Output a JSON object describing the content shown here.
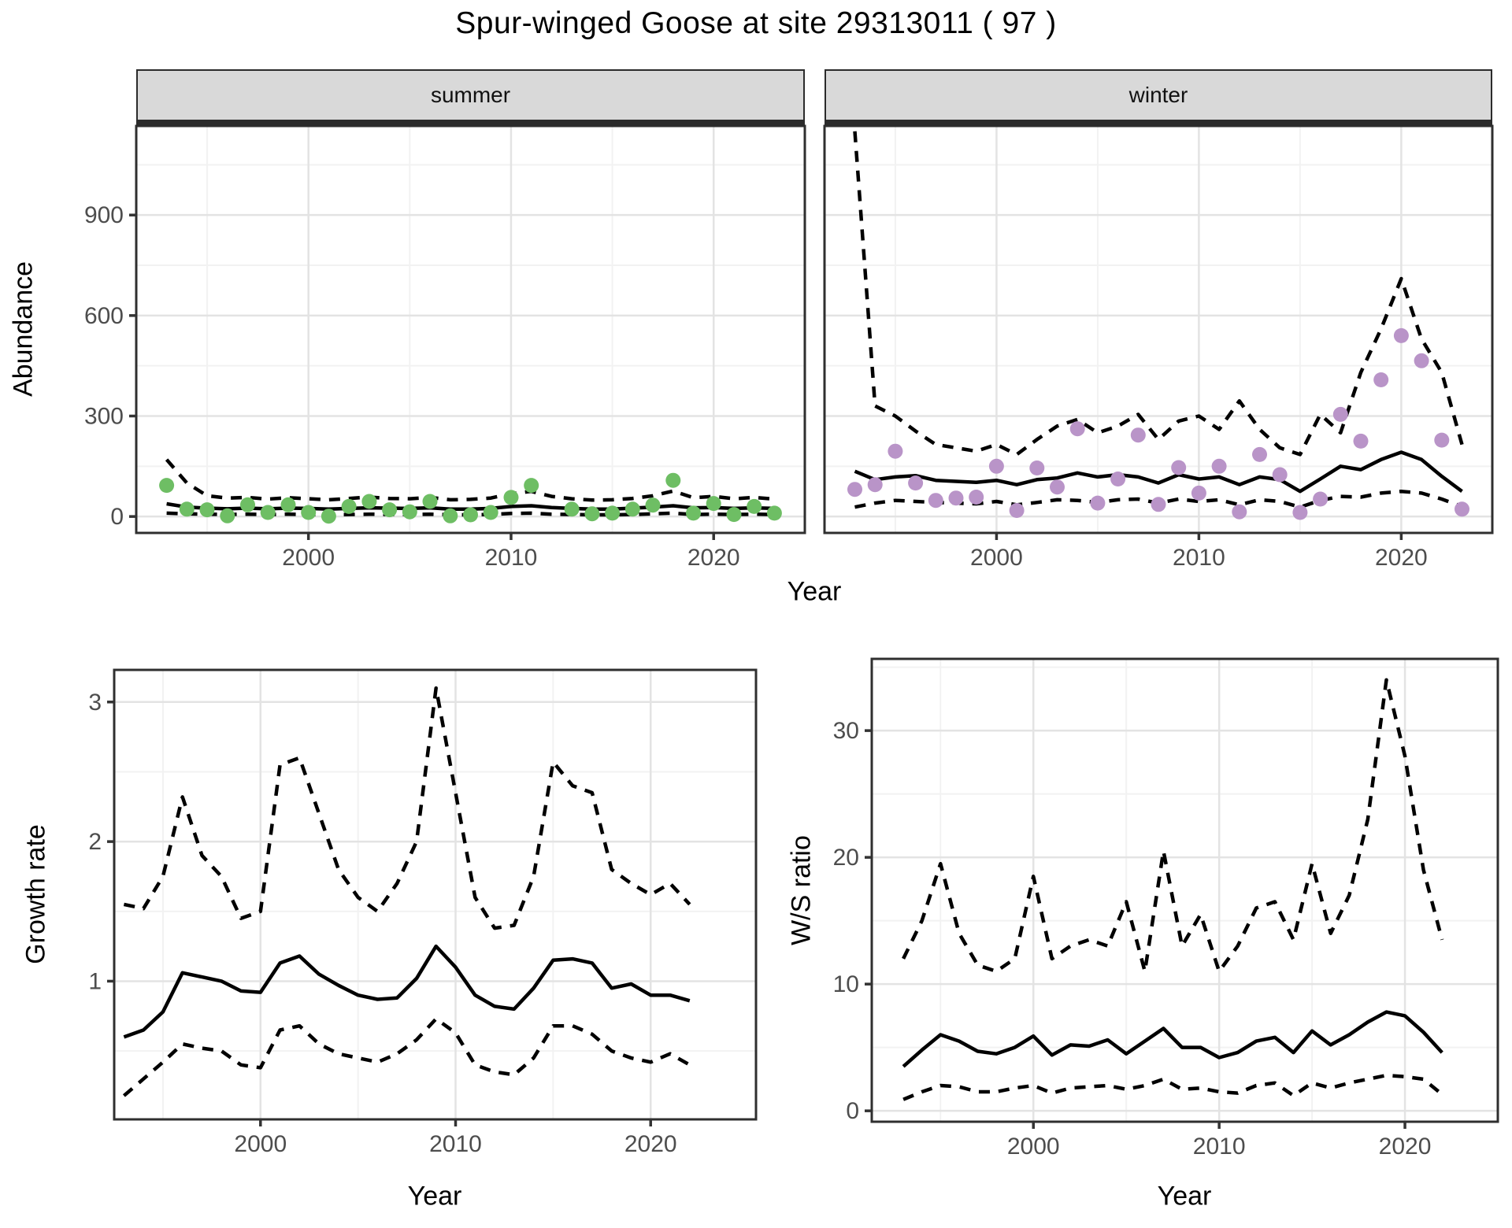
{
  "title": "Spur-winged Goose at site 29313011 ( 97 )",
  "colors": {
    "summer_point": "#6ebe64",
    "winter_point": "#b994c8",
    "line": "#000000",
    "strip_bg": "#d9d9d9",
    "panel_bg": "#ffffff",
    "panel_border": "#2f2f2f",
    "grid_major": "#e3e3e3",
    "grid_minor": "#f2f2f2",
    "axis_tick": "#333333",
    "tick_text": "#4d4d4d"
  },
  "chart_data": [
    {
      "key": "summer",
      "type": "line",
      "facet_label": "summer",
      "xlabel": "Year",
      "ylabel": "Abundance",
      "x": [
        1993,
        1994,
        1995,
        1996,
        1997,
        1998,
        1999,
        2000,
        2001,
        2002,
        2003,
        2004,
        2005,
        2006,
        2007,
        2008,
        2009,
        2010,
        2011,
        2012,
        2013,
        2014,
        2015,
        2016,
        2017,
        2018,
        2019,
        2020,
        2021,
        2022,
        2023
      ],
      "series": [
        {
          "name": "median",
          "style": "solid",
          "values": [
            38,
            28,
            25,
            23,
            25,
            23,
            25,
            24,
            22,
            24,
            26,
            25,
            24,
            26,
            22,
            22,
            24,
            30,
            32,
            27,
            24,
            22,
            22,
            25,
            28,
            32,
            26,
            27,
            24,
            26,
            24
          ]
        },
        {
          "name": "upper_ci",
          "style": "dashed",
          "values": [
            170,
            100,
            62,
            55,
            57,
            52,
            56,
            53,
            50,
            54,
            58,
            54,
            53,
            57,
            50,
            51,
            55,
            68,
            75,
            60,
            53,
            49,
            50,
            54,
            62,
            76,
            56,
            60,
            53,
            57,
            52
          ]
        },
        {
          "name": "lower_ci",
          "style": "dashed",
          "values": [
            10,
            8,
            7,
            6,
            7,
            6,
            7,
            6,
            5,
            6,
            7,
            6,
            6,
            7,
            5,
            5,
            6,
            9,
            10,
            7,
            6,
            5,
            5,
            6,
            8,
            10,
            6,
            7,
            6,
            7,
            6
          ]
        }
      ],
      "points": {
        "name": "observed_counts",
        "color_key": "summer_point",
        "values": [
          93,
          22,
          20,
          2,
          35,
          12,
          35,
          12,
          1,
          30,
          45,
          20,
          14,
          45,
          2,
          5,
          12,
          57,
          93,
          null,
          22,
          8,
          10,
          22,
          34,
          108,
          10,
          39,
          6,
          30,
          10
        ]
      },
      "xlim": [
        1991.5,
        2024.5
      ],
      "ylim": [
        -49,
        1166
      ],
      "xticks": [
        2000,
        2010,
        2020
      ],
      "xticks_minor": [
        1995,
        2005,
        2015
      ],
      "yticks": [
        0,
        300,
        600,
        900
      ],
      "yticks_minor": [
        150,
        450,
        750,
        1050
      ],
      "show_y_axis": true
    },
    {
      "key": "winter",
      "type": "line",
      "facet_label": "winter",
      "xlabel": "Year",
      "ylabel": "Abundance",
      "x": [
        1993,
        1994,
        1995,
        1996,
        1997,
        1998,
        1999,
        2000,
        2001,
        2002,
        2003,
        2004,
        2005,
        2006,
        2007,
        2008,
        2009,
        2010,
        2011,
        2012,
        2013,
        2014,
        2015,
        2016,
        2017,
        2018,
        2019,
        2020,
        2021,
        2022,
        2023
      ],
      "series": [
        {
          "name": "median",
          "style": "solid",
          "values": [
            135,
            110,
            118,
            122,
            108,
            105,
            102,
            108,
            95,
            110,
            115,
            130,
            118,
            125,
            118,
            100,
            125,
            112,
            118,
            95,
            118,
            110,
            75,
            112,
            150,
            140,
            170,
            192,
            170,
            120,
            75
          ]
        },
        {
          "name": "upper_ci",
          "style": "dashed",
          "values": [
            1150,
            330,
            300,
            255,
            215,
            205,
            195,
            215,
            185,
            230,
            270,
            290,
            250,
            270,
            305,
            230,
            285,
            300,
            260,
            345,
            260,
            205,
            185,
            305,
            250,
            430,
            560,
            710,
            530,
            430,
            215
          ]
        },
        {
          "name": "lower_ci",
          "style": "dashed",
          "values": [
            28,
            40,
            48,
            45,
            42,
            40,
            38,
            45,
            35,
            42,
            50,
            48,
            42,
            50,
            52,
            40,
            52,
            45,
            50,
            35,
            50,
            45,
            28,
            48,
            60,
            58,
            70,
            75,
            70,
            52,
            30
          ]
        }
      ],
      "points": {
        "name": "observed_counts",
        "color_key": "winter_point",
        "values": [
          81,
          95,
          195,
          100,
          48,
          55,
          58,
          150,
          18,
          145,
          88,
          262,
          40,
          112,
          243,
          36,
          146,
          70,
          150,
          14,
          185,
          125,
          12,
          52,
          305,
          225,
          408,
          540,
          465,
          228,
          22
        ]
      },
      "xlim": [
        1991.5,
        2024.5
      ],
      "ylim": [
        -49,
        1166
      ],
      "xticks": [
        2000,
        2010,
        2020
      ],
      "xticks_minor": [
        1995,
        2005,
        2015
      ],
      "yticks": [
        0,
        300,
        600,
        900
      ],
      "yticks_minor": [
        150,
        450,
        750,
        1050
      ],
      "show_y_axis": false
    },
    {
      "key": "growth",
      "type": "line",
      "facet_label": "",
      "xlabel": "Year",
      "ylabel": "Growth rate",
      "x": [
        1993,
        1994,
        1995,
        1996,
        1997,
        1998,
        1999,
        2000,
        2001,
        2002,
        2003,
        2004,
        2005,
        2006,
        2007,
        2008,
        2009,
        2010,
        2011,
        2012,
        2013,
        2014,
        2015,
        2016,
        2017,
        2018,
        2019,
        2020,
        2021,
        2022
      ],
      "series": [
        {
          "name": "median",
          "style": "solid",
          "values": [
            0.6,
            0.65,
            0.78,
            1.06,
            1.03,
            1.0,
            0.93,
            0.92,
            1.13,
            1.18,
            1.05,
            0.97,
            0.9,
            0.87,
            0.88,
            1.02,
            1.25,
            1.1,
            0.9,
            0.82,
            0.8,
            0.95,
            1.15,
            1.16,
            1.13,
            0.95,
            0.98,
            0.9,
            0.9,
            0.86
          ]
        },
        {
          "name": "upper_ci",
          "style": "dashed",
          "values": [
            1.55,
            1.52,
            1.75,
            2.32,
            1.9,
            1.75,
            1.45,
            1.5,
            2.55,
            2.6,
            2.2,
            1.8,
            1.6,
            1.5,
            1.7,
            2.0,
            3.1,
            2.35,
            1.6,
            1.38,
            1.4,
            1.75,
            2.57,
            2.4,
            2.35,
            1.8,
            1.7,
            1.62,
            1.7,
            1.55
          ]
        },
        {
          "name": "lower_ci",
          "style": "dashed",
          "values": [
            0.18,
            0.3,
            0.42,
            0.55,
            0.52,
            0.5,
            0.4,
            0.38,
            0.65,
            0.68,
            0.55,
            0.48,
            0.45,
            0.42,
            0.48,
            0.58,
            0.73,
            0.63,
            0.4,
            0.35,
            0.33,
            0.45,
            0.68,
            0.68,
            0.62,
            0.5,
            0.45,
            0.42,
            0.48,
            0.4
          ]
        }
      ],
      "points": null,
      "xlim": [
        1992.5,
        2025.4
      ],
      "ylim": [
        0.01,
        3.23
      ],
      "xticks": [
        2000,
        2010,
        2020
      ],
      "xticks_minor": [
        1995,
        2005,
        2015
      ],
      "yticks": [
        1,
        2,
        3
      ],
      "yticks_minor": [
        0.5,
        1.5,
        2.5
      ],
      "show_y_axis": true
    },
    {
      "key": "ws",
      "type": "line",
      "facet_label": "",
      "xlabel": "Year",
      "ylabel": "W/S ratio",
      "x": [
        1993,
        1994,
        1995,
        1996,
        1997,
        1998,
        1999,
        2000,
        2001,
        2002,
        2003,
        2004,
        2005,
        2006,
        2007,
        2008,
        2009,
        2010,
        2011,
        2012,
        2013,
        2014,
        2015,
        2016,
        2017,
        2018,
        2019,
        2020,
        2021,
        2022
      ],
      "series": [
        {
          "name": "median",
          "style": "solid",
          "values": [
            3.5,
            4.8,
            6.0,
            5.5,
            4.7,
            4.5,
            5.0,
            5.9,
            4.4,
            5.2,
            5.1,
            5.6,
            4.5,
            5.5,
            6.5,
            5.0,
            5.0,
            4.2,
            4.6,
            5.5,
            5.8,
            4.6,
            6.3,
            5.2,
            6.0,
            7.0,
            7.8,
            7.5,
            6.2,
            4.6
          ]
        },
        {
          "name": "upper_ci",
          "style": "dashed",
          "values": [
            12.0,
            15.0,
            19.5,
            14.0,
            11.5,
            11.0,
            12.0,
            18.5,
            12.0,
            13.0,
            13.5,
            13.0,
            16.5,
            11.0,
            20.5,
            13.0,
            15.5,
            11.0,
            13.0,
            16.0,
            16.5,
            13.5,
            19.5,
            14.0,
            17.0,
            23.0,
            34.0,
            28.0,
            19.0,
            13.5
          ]
        },
        {
          "name": "lower_ci",
          "style": "dashed",
          "values": [
            0.9,
            1.5,
            2.0,
            1.9,
            1.5,
            1.5,
            1.8,
            2.0,
            1.4,
            1.8,
            1.9,
            2.0,
            1.7,
            2.0,
            2.5,
            1.7,
            1.8,
            1.5,
            1.4,
            2.0,
            2.2,
            1.2,
            2.2,
            1.8,
            2.2,
            2.5,
            2.8,
            2.7,
            2.5,
            1.3
          ]
        }
      ],
      "points": null,
      "xlim": [
        1991.3,
        2025.0
      ],
      "ylim": [
        -0.86,
        35.66
      ],
      "xticks": [
        2000,
        2010,
        2020
      ],
      "xticks_minor": [
        1995,
        2005,
        2015
      ],
      "yticks": [
        0,
        10,
        20,
        30
      ],
      "yticks_minor": [
        5,
        15,
        25,
        35
      ],
      "show_y_axis": true
    }
  ]
}
